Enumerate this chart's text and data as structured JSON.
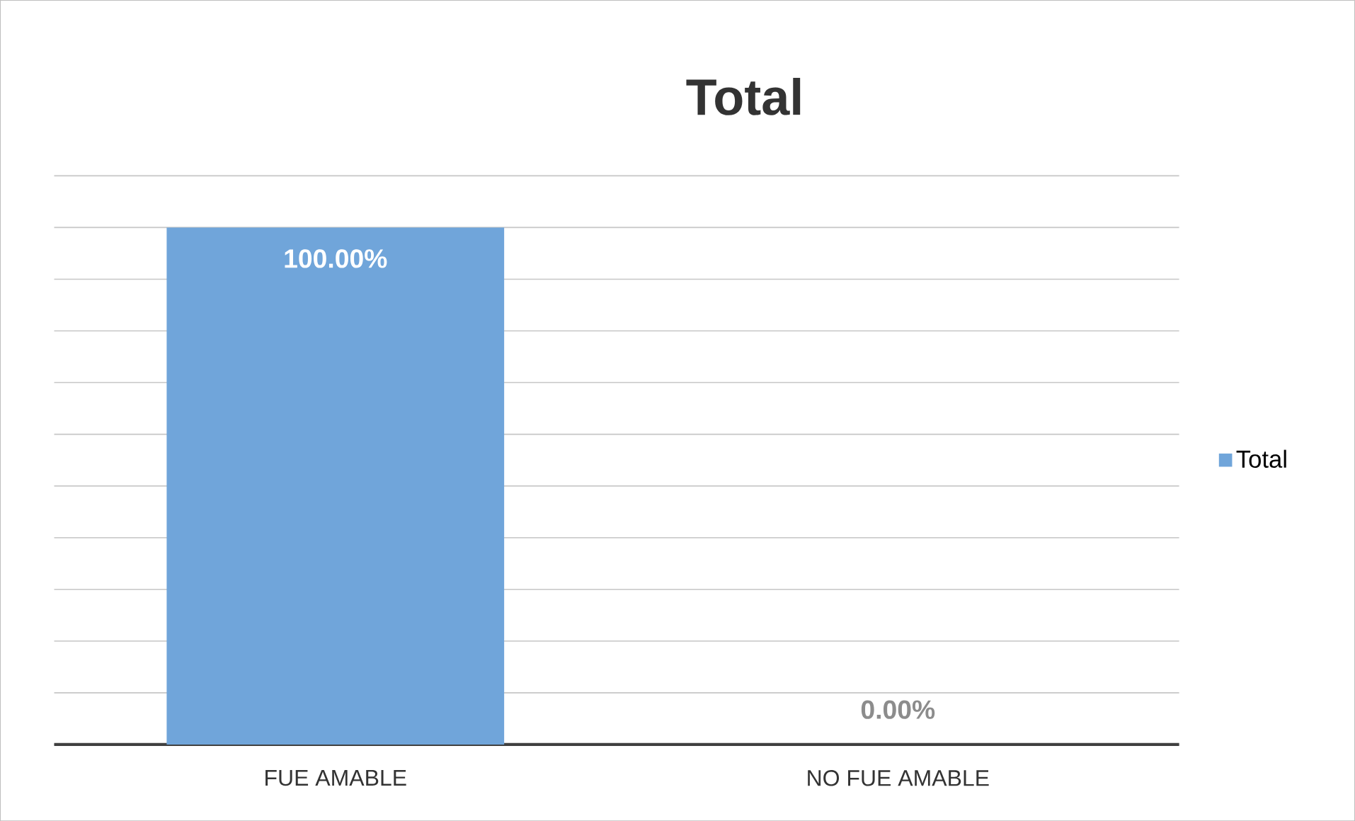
{
  "chart_data": {
    "type": "bar",
    "title": "Total",
    "categories": [
      "FUE AMABLE",
      "NO FUE AMABLE"
    ],
    "series": [
      {
        "name": "Total",
        "color": "#70a5da",
        "values": [
          100,
          0
        ],
        "value_labels": [
          "100.00%",
          "0.00%"
        ]
      }
    ],
    "tick_labels": "x",
    "grid": "y",
    "legend": "right"
  }
}
